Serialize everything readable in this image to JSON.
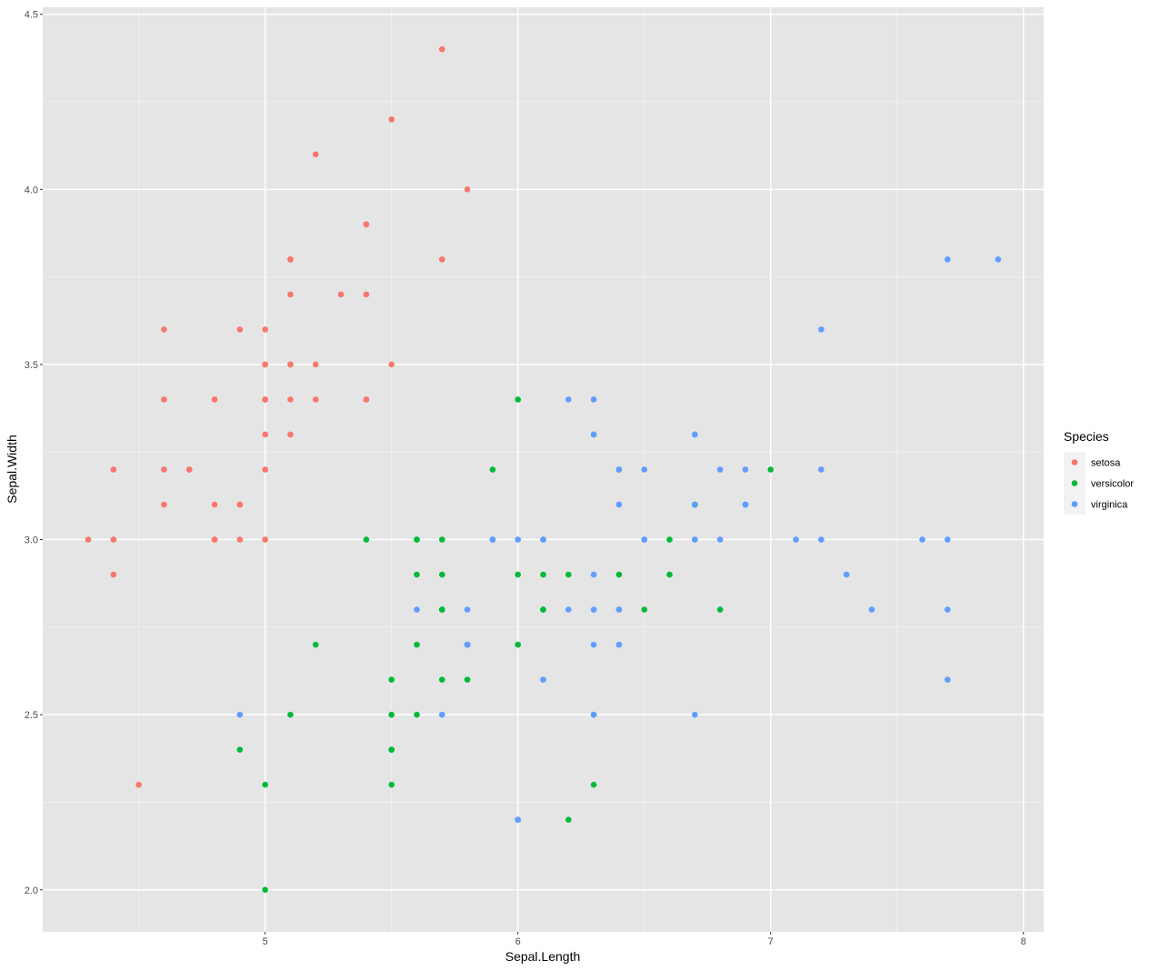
{
  "chart_data": {
    "type": "scatter",
    "title": "",
    "xlabel": "Sepal.Length",
    "ylabel": "Sepal.Width",
    "xlim": [
      4.12,
      8.08
    ],
    "ylim": [
      1.88,
      4.52
    ],
    "xticks": [
      "5",
      "6",
      "7",
      "8"
    ],
    "yticks": [
      "2.0",
      "2.5",
      "3.0",
      "3.5",
      "4.0",
      "4.5"
    ],
    "grid": true,
    "background": "#E5E5E5",
    "legend": {
      "title": "Species",
      "placement": "right"
    },
    "series": [
      {
        "name": "setosa",
        "color": "#F8766D",
        "points": [
          [
            5.1,
            3.5
          ],
          [
            4.9,
            3.0
          ],
          [
            4.7,
            3.2
          ],
          [
            4.6,
            3.1
          ],
          [
            5.0,
            3.6
          ],
          [
            5.4,
            3.9
          ],
          [
            4.6,
            3.4
          ],
          [
            5.0,
            3.4
          ],
          [
            4.4,
            2.9
          ],
          [
            4.9,
            3.1
          ],
          [
            5.4,
            3.7
          ],
          [
            4.8,
            3.4
          ],
          [
            4.8,
            3.0
          ],
          [
            4.3,
            3.0
          ],
          [
            5.8,
            4.0
          ],
          [
            5.7,
            4.4
          ],
          [
            5.4,
            3.9
          ],
          [
            5.1,
            3.5
          ],
          [
            5.7,
            3.8
          ],
          [
            5.1,
            3.8
          ],
          [
            5.4,
            3.4
          ],
          [
            5.1,
            3.7
          ],
          [
            4.6,
            3.6
          ],
          [
            5.1,
            3.3
          ],
          [
            4.8,
            3.4
          ],
          [
            5.0,
            3.0
          ],
          [
            5.0,
            3.4
          ],
          [
            5.2,
            3.5
          ],
          [
            5.2,
            3.4
          ],
          [
            4.7,
            3.2
          ],
          [
            4.8,
            3.1
          ],
          [
            5.4,
            3.4
          ],
          [
            5.2,
            4.1
          ],
          [
            5.5,
            4.2
          ],
          [
            4.9,
            3.1
          ],
          [
            5.0,
            3.2
          ],
          [
            5.5,
            3.5
          ],
          [
            4.9,
            3.6
          ],
          [
            4.4,
            3.0
          ],
          [
            5.1,
            3.4
          ],
          [
            5.0,
            3.5
          ],
          [
            4.5,
            2.3
          ],
          [
            4.4,
            3.2
          ],
          [
            5.0,
            3.5
          ],
          [
            5.1,
            3.8
          ],
          [
            4.8,
            3.0
          ],
          [
            5.1,
            3.8
          ],
          [
            4.6,
            3.2
          ],
          [
            5.3,
            3.7
          ],
          [
            5.0,
            3.3
          ]
        ]
      },
      {
        "name": "versicolor",
        "color": "#00BA38",
        "points": [
          [
            7.0,
            3.2
          ],
          [
            6.4,
            3.2
          ],
          [
            6.9,
            3.1
          ],
          [
            5.5,
            2.3
          ],
          [
            6.5,
            2.8
          ],
          [
            5.7,
            2.8
          ],
          [
            6.3,
            3.3
          ],
          [
            4.9,
            2.4
          ],
          [
            6.6,
            2.9
          ],
          [
            5.2,
            2.7
          ],
          [
            5.0,
            2.0
          ],
          [
            5.9,
            3.0
          ],
          [
            6.0,
            2.2
          ],
          [
            6.1,
            2.9
          ],
          [
            5.6,
            2.9
          ],
          [
            6.7,
            3.1
          ],
          [
            5.6,
            3.0
          ],
          [
            5.8,
            2.7
          ],
          [
            6.2,
            2.2
          ],
          [
            5.6,
            2.5
          ],
          [
            5.9,
            3.2
          ],
          [
            6.1,
            2.8
          ],
          [
            6.3,
            2.5
          ],
          [
            6.1,
            2.8
          ],
          [
            6.4,
            2.9
          ],
          [
            6.6,
            3.0
          ],
          [
            6.8,
            2.8
          ],
          [
            6.7,
            3.0
          ],
          [
            6.0,
            2.9
          ],
          [
            5.7,
            2.6
          ],
          [
            5.5,
            2.4
          ],
          [
            5.5,
            2.4
          ],
          [
            5.8,
            2.7
          ],
          [
            6.0,
            2.7
          ],
          [
            5.4,
            3.0
          ],
          [
            6.0,
            3.4
          ],
          [
            6.7,
            3.1
          ],
          [
            6.3,
            2.3
          ],
          [
            5.6,
            3.0
          ],
          [
            5.5,
            2.5
          ],
          [
            5.5,
            2.6
          ],
          [
            6.1,
            3.0
          ],
          [
            5.8,
            2.6
          ],
          [
            5.0,
            2.3
          ],
          [
            5.6,
            2.7
          ],
          [
            5.7,
            3.0
          ],
          [
            5.7,
            2.9
          ],
          [
            6.2,
            2.9
          ],
          [
            5.1,
            2.5
          ],
          [
            5.7,
            2.8
          ]
        ]
      },
      {
        "name": "virginica",
        "color": "#619CFF",
        "points": [
          [
            6.3,
            3.3
          ],
          [
            5.8,
            2.7
          ],
          [
            7.1,
            3.0
          ],
          [
            6.3,
            2.9
          ],
          [
            6.5,
            3.0
          ],
          [
            7.6,
            3.0
          ],
          [
            4.9,
            2.5
          ],
          [
            7.3,
            2.9
          ],
          [
            6.7,
            2.5
          ],
          [
            7.2,
            3.6
          ],
          [
            6.5,
            3.2
          ],
          [
            6.4,
            2.7
          ],
          [
            6.8,
            3.0
          ],
          [
            5.7,
            2.5
          ],
          [
            5.8,
            2.8
          ],
          [
            6.4,
            3.2
          ],
          [
            6.5,
            3.0
          ],
          [
            7.7,
            3.8
          ],
          [
            7.7,
            2.6
          ],
          [
            6.0,
            2.2
          ],
          [
            6.9,
            3.2
          ],
          [
            5.6,
            2.8
          ],
          [
            7.7,
            2.8
          ],
          [
            6.3,
            2.7
          ],
          [
            6.7,
            3.3
          ],
          [
            7.2,
            3.2
          ],
          [
            6.2,
            2.8
          ],
          [
            6.1,
            3.0
          ],
          [
            6.4,
            2.8
          ],
          [
            7.2,
            3.0
          ],
          [
            7.4,
            2.8
          ],
          [
            7.9,
            3.8
          ],
          [
            6.4,
            2.8
          ],
          [
            6.3,
            2.8
          ],
          [
            6.1,
            2.6
          ],
          [
            7.7,
            3.0
          ],
          [
            6.3,
            3.4
          ],
          [
            6.4,
            3.1
          ],
          [
            6.0,
            3.0
          ],
          [
            6.9,
            3.1
          ],
          [
            6.7,
            3.1
          ],
          [
            6.9,
            3.1
          ],
          [
            5.8,
            2.7
          ],
          [
            6.8,
            3.2
          ],
          [
            6.7,
            3.3
          ],
          [
            6.7,
            3.0
          ],
          [
            6.3,
            2.5
          ],
          [
            6.5,
            3.0
          ],
          [
            6.2,
            3.4
          ],
          [
            5.9,
            3.0
          ]
        ]
      }
    ]
  }
}
